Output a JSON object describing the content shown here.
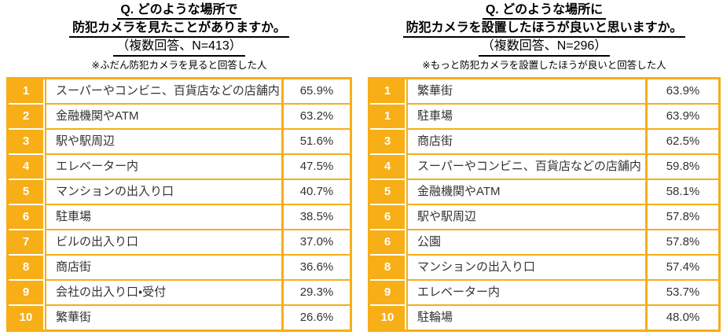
{
  "colors": {
    "gold": "#F7AE17",
    "cell_text": "#333333",
    "rank_text": "#FFFFFF",
    "title_text": "#000000",
    "page_bg": "#FFFFFF"
  },
  "tables": [
    {
      "title_line1": "Q. どのような場所で",
      "title_line2": "防犯カメラを見たことがありますか。",
      "subtitle": "（複数回答、N=413）",
      "note": "※ふだん防犯カメラを見ると回答した人",
      "rows": [
        {
          "rank": "1",
          "label": "スーパーやコンビニ、百貨店などの店舗内",
          "value": "65.9%"
        },
        {
          "rank": "2",
          "label": "金融機関やATM",
          "value": "63.2%"
        },
        {
          "rank": "3",
          "label": "駅や駅周辺",
          "value": "51.6%"
        },
        {
          "rank": "4",
          "label": "エレベーター内",
          "value": "47.5%"
        },
        {
          "rank": "5",
          "label": "マンションの出入り口",
          "value": "40.7%"
        },
        {
          "rank": "6",
          "label": "駐車場",
          "value": "38.5%"
        },
        {
          "rank": "7",
          "label": "ビルの出入り口",
          "value": "37.0%"
        },
        {
          "rank": "8",
          "label": "商店街",
          "value": "36.6%"
        },
        {
          "rank": "9",
          "label": "会社の出入り口・受付",
          "value": "29.3%"
        },
        {
          "rank": "10",
          "label": "繁華街",
          "value": "26.6%"
        }
      ]
    },
    {
      "title_line1": "Q. どのような場所に",
      "title_line2": "防犯カメラを設置したほうが良いと思いますか。",
      "subtitle": "（複数回答、N=296）",
      "note": "※もっと防犯カメラを設置したほうが良いと回答した人",
      "rows": [
        {
          "rank": "1",
          "label": "繁華街",
          "value": "63.9%"
        },
        {
          "rank": "1",
          "label": "駐車場",
          "value": "63.9%"
        },
        {
          "rank": "3",
          "label": "商店街",
          "value": "62.5%"
        },
        {
          "rank": "4",
          "label": "スーパーやコンビニ、百貨店などの店舗内",
          "value": "59.8%"
        },
        {
          "rank": "5",
          "label": "金融機関やATM",
          "value": "58.1%"
        },
        {
          "rank": "6",
          "label": "駅や駅周辺",
          "value": "57.8%"
        },
        {
          "rank": "6",
          "label": "公園",
          "value": "57.8%"
        },
        {
          "rank": "8",
          "label": "マンションの出入り口",
          "value": "57.4%"
        },
        {
          "rank": "9",
          "label": "エレベーター内",
          "value": "53.7%"
        },
        {
          "rank": "10",
          "label": "駐輪場",
          "value": "48.0%"
        }
      ]
    }
  ],
  "chart_data": [
    {
      "type": "table",
      "title": "Q. どのような場所で防犯カメラを見たことがありますか。（複数回答、N=413）",
      "note": "※ふだん防犯カメラを見ると回答した人",
      "ranks": [
        1,
        2,
        3,
        4,
        5,
        6,
        7,
        8,
        9,
        10
      ],
      "categories": [
        "スーパーやコンビニ、百貨店などの店舗内",
        "金融機関やATM",
        "駅や駅周辺",
        "エレベーター内",
        "マンションの出入り口",
        "駐車場",
        "ビルの出入り口",
        "商店街",
        "会社の出入り口・受付",
        "繁華街"
      ],
      "values": [
        65.9,
        63.2,
        51.6,
        47.5,
        40.7,
        38.5,
        37.0,
        36.6,
        29.3,
        26.6
      ],
      "unit": "%"
    },
    {
      "type": "table",
      "title": "Q. どのような場所に防犯カメラを設置したほうが良いと思いますか。（複数回答、N=296）",
      "note": "※もっと防犯カメラを設置したほうが良いと回答した人",
      "ranks": [
        1,
        1,
        3,
        4,
        5,
        6,
        6,
        8,
        9,
        10
      ],
      "categories": [
        "繁華街",
        "駐車場",
        "商店街",
        "スーパーやコンビニ、百貨店などの店舗内",
        "金融機関やATM",
        "駅や駅周辺",
        "公園",
        "マンションの出入り口",
        "エレベーター内",
        "駐輪場"
      ],
      "values": [
        63.9,
        63.9,
        62.5,
        59.8,
        58.1,
        57.8,
        57.8,
        57.4,
        53.7,
        48.0
      ],
      "unit": "%"
    }
  ]
}
